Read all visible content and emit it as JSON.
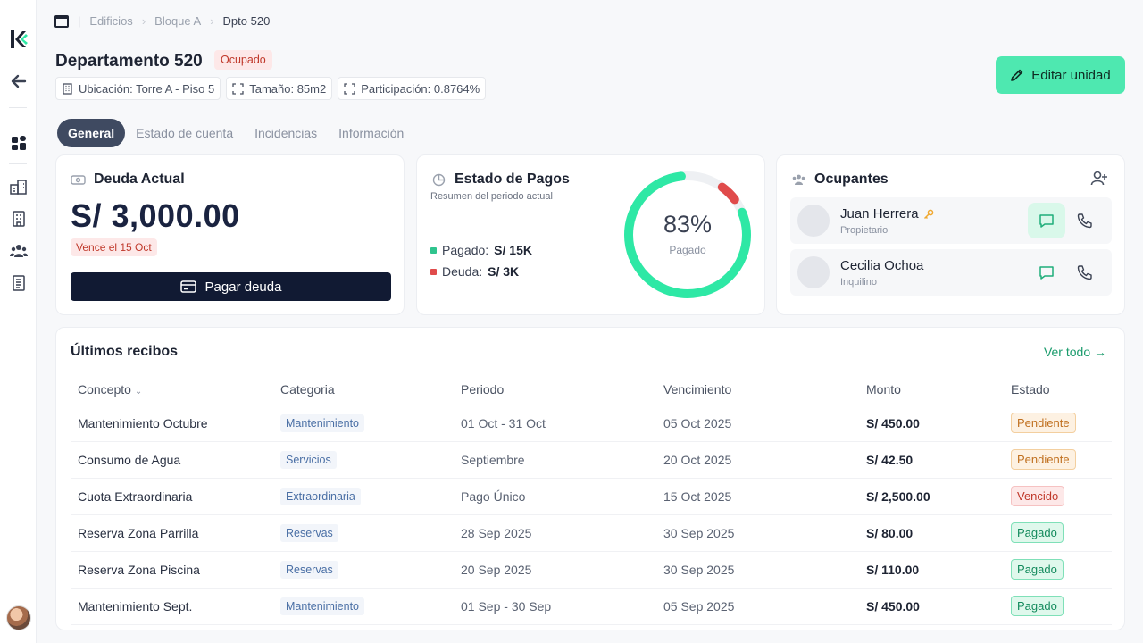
{
  "breadcrumb": {
    "items": [
      "Edificios",
      "Bloque A",
      "Dpto 520"
    ]
  },
  "unit": {
    "title": "Departamento 520",
    "status": "Ocupado",
    "chips": [
      {
        "icon": "building-icon",
        "label": "Ubicación: Torre A - Piso 5"
      },
      {
        "icon": "expand-icon",
        "label": "Tamaño: 85m2"
      },
      {
        "icon": "expand-icon",
        "label": "Participación: 0.8764%"
      }
    ],
    "edit_label": "Editar unidad"
  },
  "tabs": [
    {
      "label": "General",
      "active": true
    },
    {
      "label": "Estado de cuenta",
      "active": false
    },
    {
      "label": "Incidencias",
      "active": false
    },
    {
      "label": "Información",
      "active": false
    }
  ],
  "debt": {
    "title": "Deuda Actual",
    "amount": "S/ 3,000.00",
    "due": "Vence el 15 Oct",
    "pay_label": "Pagar deuda"
  },
  "payments": {
    "title": "Estado de Pagos",
    "subtitle": "Resumen del periodo actual",
    "paid_label": "Pagado:",
    "paid_value": "S/ 15K",
    "debt_label": "Deuda:",
    "debt_value": "S/ 3K",
    "percent_text": "83%",
    "percent_value": 83,
    "percent_caption": "Pagado",
    "colors": {
      "paid": "#2ee8a5",
      "debt": "#e04b4b"
    }
  },
  "occupants": {
    "title": "Ocupantes",
    "items": [
      {
        "name": "Juan Herrera",
        "role": "Propietario",
        "owner": true
      },
      {
        "name": "Cecilia Ochoa",
        "role": "Inquilino",
        "owner": false
      }
    ]
  },
  "receipts": {
    "title": "Últimos recibos",
    "view_all": "Ver todo →",
    "columns": [
      "Concepto",
      "Categoria",
      "Periodo",
      "Vencimiento",
      "Monto",
      "Estado"
    ],
    "rows": [
      {
        "concept": "Mantenimiento Octubre",
        "category": "Mantenimiento",
        "period": "01 Oct - 31 Oct",
        "due": "05 Oct 2025",
        "amount": "S/ 450.00",
        "state": "Pendiente"
      },
      {
        "concept": "Consumo de Agua",
        "category": "Servicios",
        "period": "Septiembre",
        "due": "20 Oct 2025",
        "amount": "S/ 42.50",
        "state": "Pendiente"
      },
      {
        "concept": "Cuota Extraordinaria",
        "category": "Extraordinaria",
        "period": "Pago Único",
        "due": "15 Oct 2025",
        "amount": "S/ 2,500.00",
        "state": "Vencido"
      },
      {
        "concept": "Reserva Zona Parrilla",
        "category": "Reservas",
        "period": "28 Sep 2025",
        "due": "30 Sep 2025",
        "amount": "S/ 80.00",
        "state": "Pagado"
      },
      {
        "concept": "Reserva Zona Piscina",
        "category": "Reservas",
        "period": "20 Sep 2025",
        "due": "30 Sep 2025",
        "amount": "S/ 110.00",
        "state": "Pagado"
      },
      {
        "concept": "Mantenimiento Sept.",
        "category": "Mantenimiento",
        "period": "01 Sep - 30 Sep",
        "due": "05 Sep 2025",
        "amount": "S/ 450.00",
        "state": "Pagado"
      }
    ]
  }
}
